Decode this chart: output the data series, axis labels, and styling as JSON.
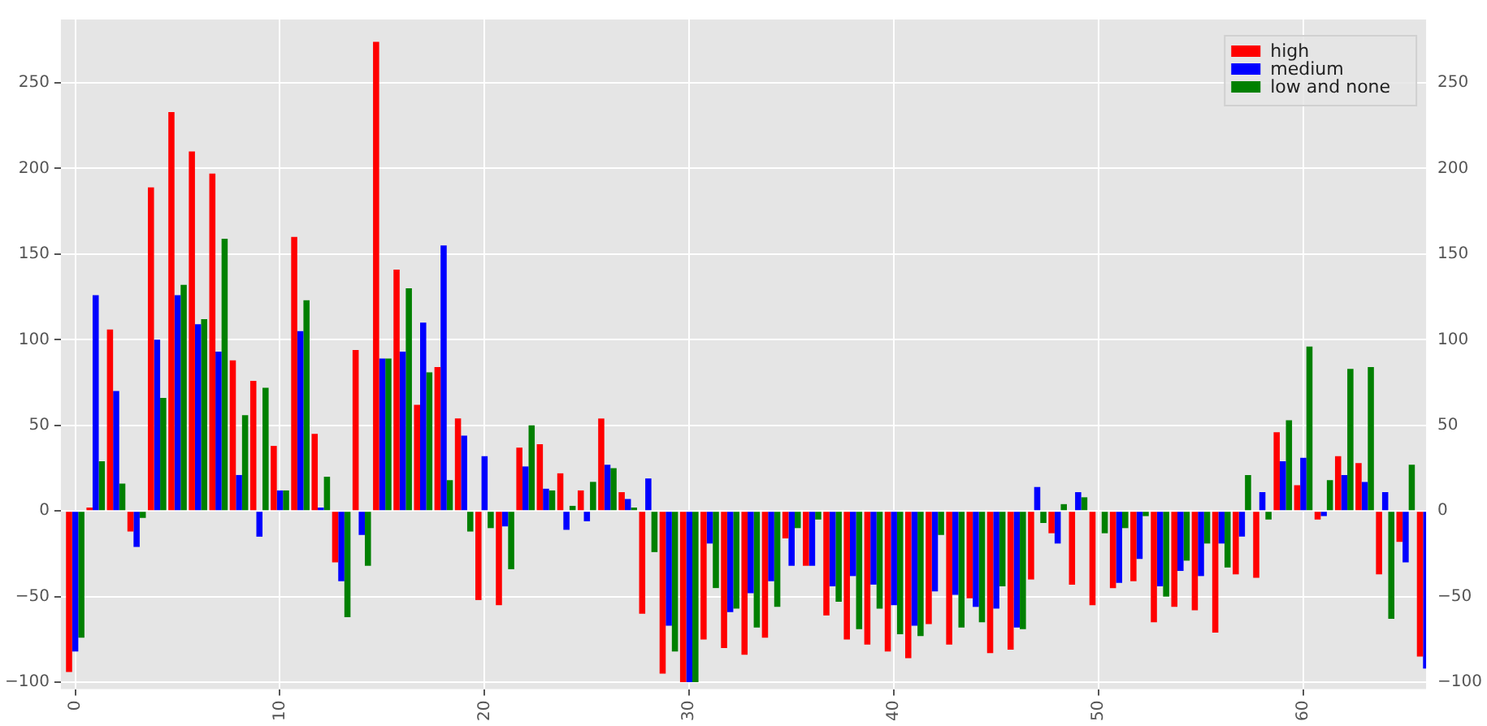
{
  "chart_data": {
    "type": "bar",
    "x": [
      0,
      1,
      2,
      3,
      4,
      5,
      6,
      7,
      8,
      9,
      10,
      11,
      12,
      13,
      14,
      15,
      16,
      17,
      18,
      19,
      20,
      21,
      22,
      23,
      24,
      25,
      26,
      27,
      28,
      29,
      30,
      31,
      32,
      33,
      34,
      35,
      36,
      37,
      38,
      39,
      40,
      41,
      42,
      43,
      44,
      45,
      46,
      47,
      48,
      49,
      50,
      51,
      52,
      53,
      54,
      55,
      56,
      57,
      58,
      59,
      60,
      61,
      62,
      63,
      64,
      65,
      66
    ],
    "series": [
      {
        "name": "high",
        "color": "#ff0000",
        "values": [
          -94,
          2,
          106,
          -12,
          189,
          233,
          210,
          197,
          88,
          76,
          38,
          160,
          45,
          -30,
          94,
          274,
          141,
          62,
          84,
          54,
          -52,
          -55,
          37,
          39,
          22,
          12,
          54,
          11,
          -60,
          -95,
          -100,
          -75,
          -80,
          -84,
          -74,
          -16,
          -32,
          -61,
          -75,
          -78,
          -82,
          -86,
          -66,
          -78,
          -51,
          -83,
          -81,
          -40,
          -13,
          -43,
          -55,
          -45,
          -41,
          -65,
          -56,
          -58,
          -71,
          -37,
          -39,
          46,
          15,
          -5,
          32,
          28,
          -37,
          -18,
          -85
        ]
      },
      {
        "name": "medium",
        "color": "#0000ff",
        "values": [
          -82,
          126,
          70,
          -21,
          100,
          126,
          109,
          93,
          21,
          -15,
          12,
          105,
          2,
          -41,
          -14,
          89,
          93,
          110,
          155,
          44,
          32,
          -9,
          26,
          13,
          -11,
          -6,
          27,
          7,
          19,
          -67,
          -100,
          -19,
          -59,
          -48,
          -41,
          -32,
          -32,
          -44,
          -38,
          -43,
          -55,
          -67,
          -47,
          -49,
          -56,
          -57,
          -68,
          14,
          -19,
          11,
          0,
          -42,
          -28,
          -44,
          -35,
          -38,
          -19,
          -15,
          11,
          29,
          31,
          -3,
          21,
          17,
          11,
          -30,
          -92
        ]
      },
      {
        "name": "low and none",
        "color": "#008000",
        "values": [
          -74,
          29,
          16,
          -4,
          66,
          132,
          112,
          159,
          56,
          72,
          12,
          123,
          20,
          -62,
          -32,
          89,
          130,
          81,
          18,
          -12,
          -10,
          -34,
          50,
          12,
          3,
          17,
          25,
          2,
          -24,
          -82,
          -100,
          -45,
          -57,
          -68,
          -56,
          -10,
          -5,
          -53,
          -69,
          -57,
          -72,
          -73,
          -14,
          -68,
          -65,
          -44,
          -69,
          -7,
          4,
          8,
          -13,
          -10,
          -3,
          -50,
          -29,
          -19,
          -33,
          21,
          -5,
          53,
          96,
          18,
          83,
          84,
          -63,
          27,
          null
        ]
      }
    ],
    "xlim": [
      -0.7,
      66
    ],
    "xticks": [
      0,
      10,
      20,
      30,
      40,
      50,
      60
    ],
    "ylim": [
      -104,
      287
    ],
    "yticks": [
      -100,
      -50,
      0,
      50,
      100,
      150,
      200,
      250
    ],
    "y2lim": [
      -104,
      287
    ],
    "y2ticks": [
      -100,
      -50,
      0,
      50,
      100,
      150,
      200,
      250
    ],
    "grid": true,
    "legend": "top right"
  }
}
